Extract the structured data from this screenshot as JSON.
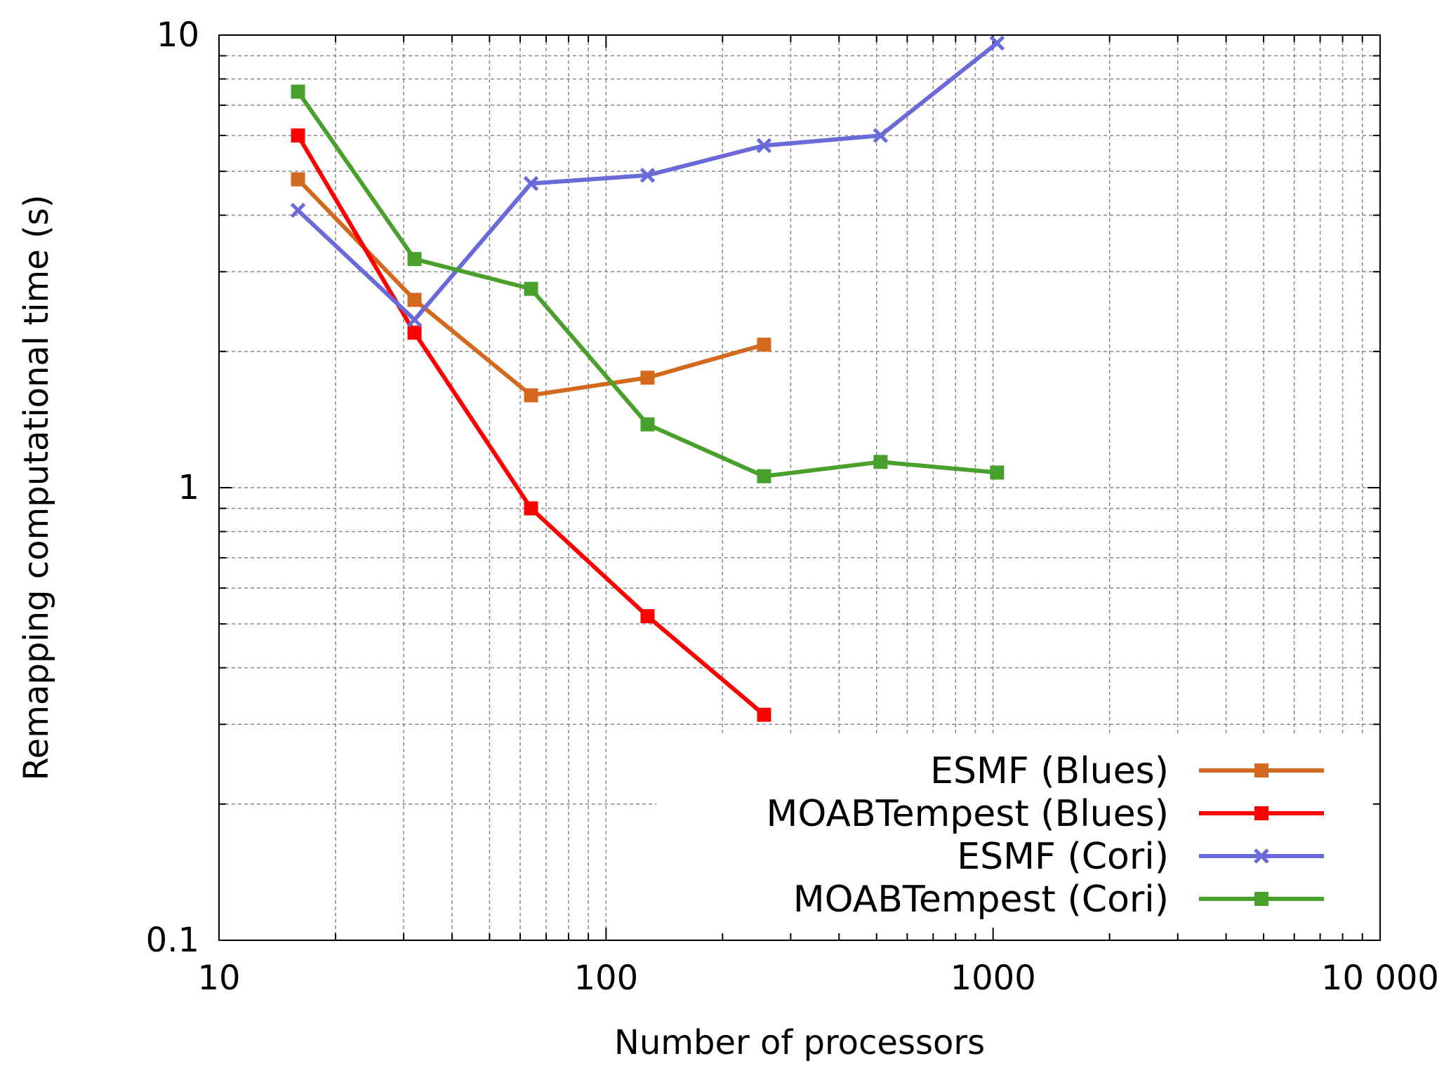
{
  "chart_data": {
    "type": "line",
    "title": "",
    "xlabel": "Number of processors",
    "ylabel": "Remapping computational time (s)",
    "x_scale": "log",
    "y_scale": "log",
    "xlim": [
      10,
      10000
    ],
    "ylim": [
      0.1,
      10
    ],
    "x_ticks": [
      10,
      100,
      1000,
      10000
    ],
    "x_tick_labels": [
      "10",
      "100",
      "1000",
      "10 000"
    ],
    "y_ticks": [
      0.1,
      1,
      10
    ],
    "y_tick_labels": [
      "0.1",
      "1",
      "10"
    ],
    "grid": true,
    "legend_position": "bottom-right",
    "series": [
      {
        "name": "ESMF (Blues)",
        "color": "#d2691e",
        "marker": "square",
        "x": [
          16,
          32,
          64,
          128,
          256
        ],
        "y": [
          4.8,
          2.6,
          1.6,
          1.75,
          2.07
        ]
      },
      {
        "name": "MOABTempest (Blues)",
        "color": "#ff0000",
        "marker": "square",
        "x": [
          16,
          32,
          64,
          128,
          256
        ],
        "y": [
          6.0,
          2.2,
          0.9,
          0.52,
          0.315
        ]
      },
      {
        "name": "ESMF (Cori)",
        "color": "#6a6ad8",
        "marker": "cross",
        "x": [
          16,
          32,
          64,
          128,
          256,
          512,
          1024
        ],
        "y": [
          4.1,
          2.35,
          4.7,
          4.9,
          5.7,
          6.0,
          9.6
        ]
      },
      {
        "name": "MOABTempest (Cori)",
        "color": "#4aa02c",
        "marker": "square",
        "x": [
          16,
          32,
          64,
          128,
          256,
          512,
          1024
        ],
        "y": [
          7.5,
          3.2,
          2.75,
          1.38,
          1.06,
          1.14,
          1.08
        ]
      }
    ]
  }
}
